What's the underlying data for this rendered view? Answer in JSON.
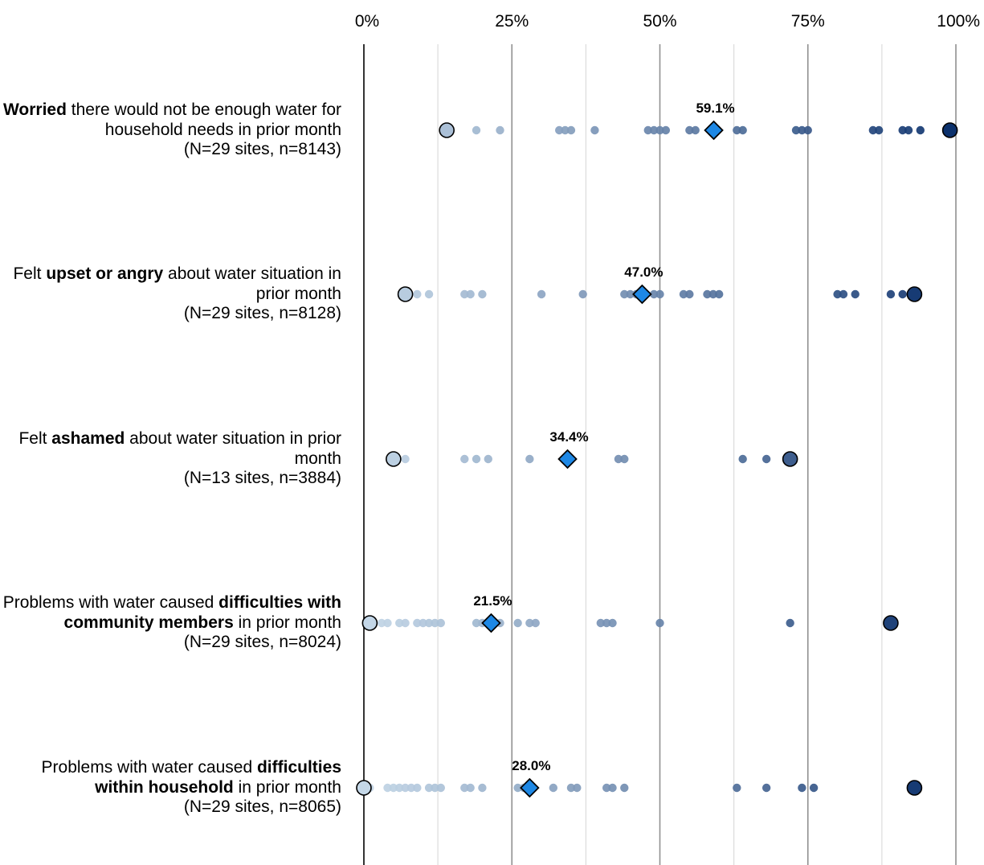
{
  "chart_data": {
    "type": "scatter",
    "title": "",
    "xlabel": "",
    "ylabel": "",
    "xlim": [
      0,
      100
    ],
    "x_ticks": [
      "0%",
      "25%",
      "50%",
      "75%",
      "100%"
    ],
    "grid": true,
    "colors": {
      "low": "#c5d8e8",
      "high": "#0a2f6b",
      "mean": "#1e88e5",
      "axis": "#000000",
      "grid_major": "#909090",
      "grid_minor": "#dcdcdc"
    },
    "rows": [
      {
        "label_parts": [
          {
            "text": "Worried",
            "bold": true
          },
          {
            "text": " there would not be enough water for household needs in prior month",
            "bold": false
          }
        ],
        "sample": "(N=29 sites, n=8143)",
        "mean": 59.1,
        "mean_label": "59.1%",
        "min": 14,
        "max": 99,
        "points": [
          19,
          23,
          33,
          34,
          35,
          39,
          48,
          49,
          50,
          51,
          55,
          56,
          63,
          64,
          73,
          74,
          75,
          86,
          87,
          91,
          92,
          94
        ]
      },
      {
        "label_parts": [
          {
            "text": "Felt ",
            "bold": false
          },
          {
            "text": "upset or angry",
            "bold": true
          },
          {
            "text": " about water situation in prior month",
            "bold": false
          }
        ],
        "sample": "(N=29 sites, n=8128)",
        "mean": 47.0,
        "mean_label": "47.0%",
        "min": 7,
        "max": 93,
        "points": [
          9,
          11,
          17,
          18,
          20,
          30,
          37,
          44,
          45,
          46,
          49,
          50,
          54,
          55,
          58,
          59,
          60,
          80,
          81,
          83,
          89,
          91
        ]
      },
      {
        "label_parts": [
          {
            "text": "Felt ",
            "bold": false
          },
          {
            "text": "ashamed",
            "bold": true
          },
          {
            "text": " about water situation in prior month",
            "bold": false
          }
        ],
        "sample": "(N=13 sites, n=3884)",
        "mean": 34.4,
        "mean_label": "34.4%",
        "min": 5,
        "max": 72,
        "points": [
          7,
          17,
          19,
          21,
          28,
          43,
          44,
          64,
          68
        ]
      },
      {
        "label_parts": [
          {
            "text": "Problems with water caused ",
            "bold": false
          },
          {
            "text": "difficulties with community members",
            "bold": true
          },
          {
            "text": " in prior month",
            "bold": false
          }
        ],
        "sample": "(N=29 sites, n=8024)",
        "mean": 21.5,
        "mean_label": "21.5%",
        "min": 1,
        "max": 89,
        "points": [
          3,
          4,
          6,
          7,
          9,
          10,
          11,
          12,
          13,
          19,
          20,
          22,
          23,
          26,
          28,
          29,
          40,
          41,
          42,
          50,
          72
        ]
      },
      {
        "label_parts": [
          {
            "text": "Problems with water caused ",
            "bold": false
          },
          {
            "text": "difficulties within household",
            "bold": true
          },
          {
            "text": " in prior month",
            "bold": false
          }
        ],
        "sample": "(N=29 sites, n=8065)",
        "mean": 28.0,
        "mean_label": "28.0%",
        "min": 0,
        "max": 93,
        "points": [
          1,
          4,
          5,
          6,
          7,
          8,
          9,
          11,
          12,
          13,
          17,
          18,
          20,
          26,
          27,
          32,
          35,
          36,
          41,
          42,
          44,
          63,
          68,
          74,
          76
        ]
      }
    ]
  }
}
